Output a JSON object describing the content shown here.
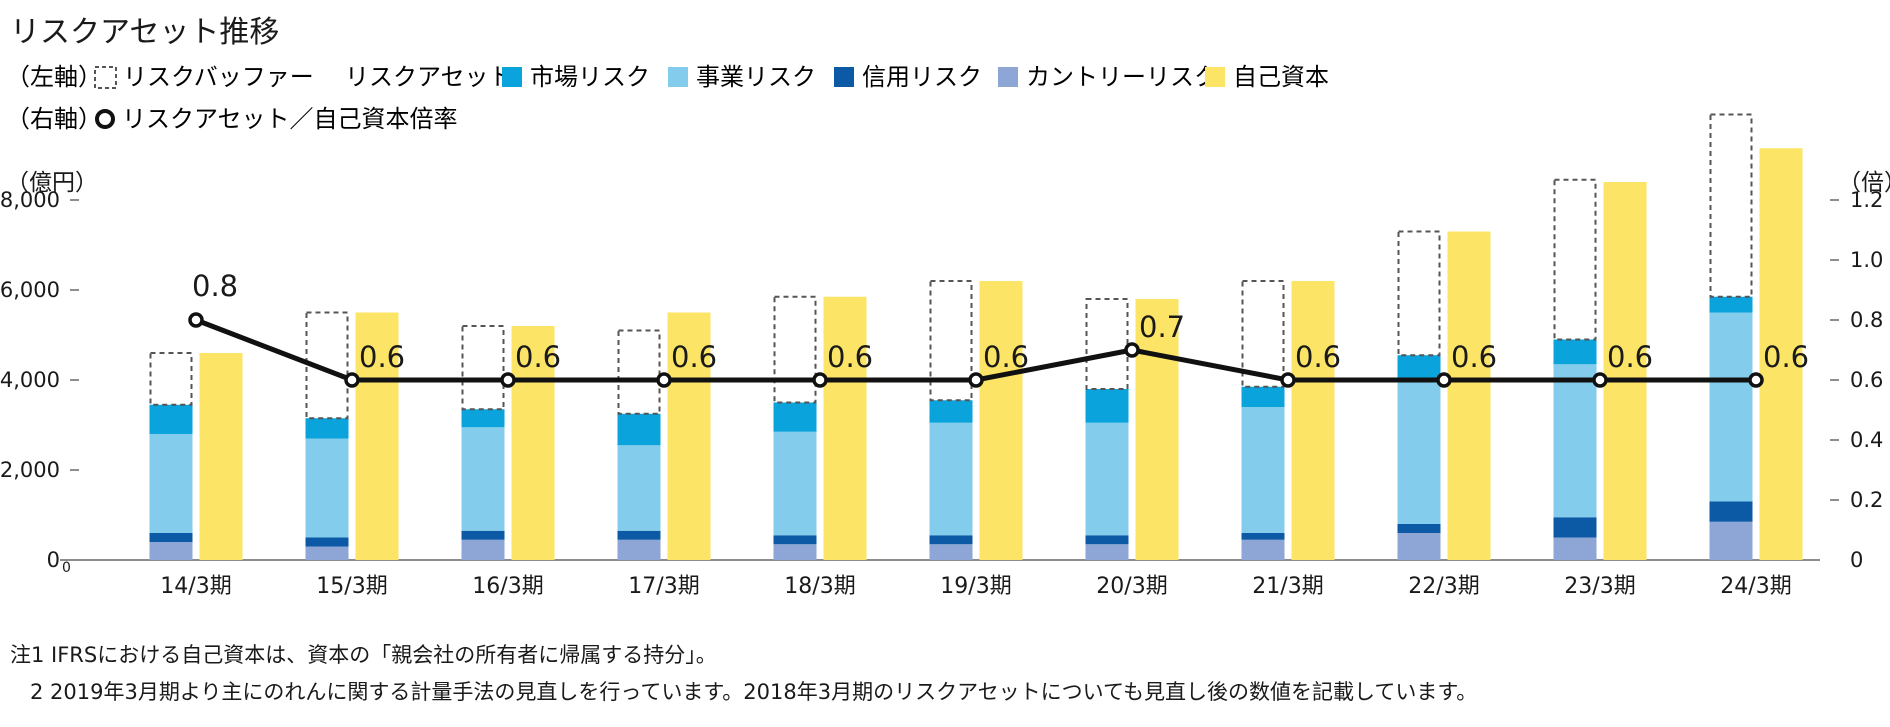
{
  "title": "リスクアセット推移",
  "legend": {
    "left_axis_label": "（左軸）",
    "right_axis_label": "（右軸）",
    "risk_buffer": "リスクバッファー",
    "risk_asset_heading": "リスクアセット",
    "market_risk": "市場リスク",
    "business_risk": "事業リスク",
    "credit_risk": "信用リスク",
    "country_risk": "カントリーリスク",
    "equity": "自己資本",
    "ratio": "リスクアセット／自己資本倍率"
  },
  "colors": {
    "market_risk": "#0aa3dc",
    "business_risk": "#83cceb",
    "credit_risk": "#0c5aa6",
    "country_risk": "#8ea6d6",
    "equity": "#fce566",
    "buffer_border": "#555555",
    "line": "#111111"
  },
  "notes": [
    "注1 IFRSにおける自己資本は、資本の「親会社の所有者に帰属する持分」。",
    "2 2019年3月期より主にのれんに関する計量手法の見直しを行っています。2018年3月期のリスクアセットについても見直し後の数値を記載しています。"
  ],
  "chart_data": {
    "type": "bar",
    "title": "リスクアセット推移",
    "left_unit": "（億円）",
    "right_unit": "（倍）",
    "y_left_lim": [
      0,
      9000
    ],
    "y_left_ticks": [
      "0",
      "2,000",
      "4,000",
      "6,000",
      "8,000"
    ],
    "y_right_lim": [
      0,
      1.35
    ],
    "y_right_ticks": [
      "0",
      "0.2",
      "0.4",
      "0.6",
      "0.8",
      "1.0",
      "1.2"
    ],
    "categories": [
      "14/3期",
      "15/3期",
      "16/3期",
      "17/3期",
      "18/3期",
      "19/3期",
      "20/3期",
      "21/3期",
      "22/3期",
      "23/3期",
      "24/3期"
    ],
    "series": [
      {
        "name": "カントリーリスク",
        "stack": "risk_asset",
        "values": [
          400,
          300,
          450,
          450,
          350,
          350,
          350,
          450,
          600,
          500,
          850
        ]
      },
      {
        "name": "信用リスク",
        "stack": "risk_asset",
        "values": [
          200,
          200,
          200,
          200,
          200,
          200,
          200,
          150,
          200,
          450,
          450
        ]
      },
      {
        "name": "事業リスク",
        "stack": "risk_asset",
        "values": [
          2200,
          2200,
          2300,
          1900,
          2300,
          2500,
          2500,
          2800,
          3200,
          3400,
          4200
        ]
      },
      {
        "name": "市場リスク",
        "stack": "risk_asset",
        "values": [
          650,
          450,
          400,
          700,
          650,
          500,
          750,
          450,
          550,
          550,
          350
        ]
      },
      {
        "name": "リスクバッファー",
        "stack": "risk_asset",
        "values": [
          1150,
          2350,
          1850,
          1850,
          2350,
          2650,
          2000,
          2350,
          2750,
          3550,
          4050
        ]
      },
      {
        "name": "自己資本",
        "stack": "equity",
        "values": [
          4600,
          5500,
          5200,
          5500,
          5850,
          6200,
          5800,
          6200,
          7300,
          8400,
          9150
        ]
      }
    ],
    "ratio": {
      "name": "リスクアセット／自己資本倍率",
      "axis": "right",
      "values": [
        0.8,
        0.6,
        0.6,
        0.6,
        0.6,
        0.6,
        0.7,
        0.6,
        0.6,
        0.6,
        0.6
      ],
      "labels": [
        "0.8",
        "0.6",
        "0.6",
        "0.6",
        "0.6",
        "0.6",
        "0.7",
        "0.6",
        "0.6",
        "0.6",
        "0.6"
      ]
    },
    "origin_subscript": "0"
  }
}
